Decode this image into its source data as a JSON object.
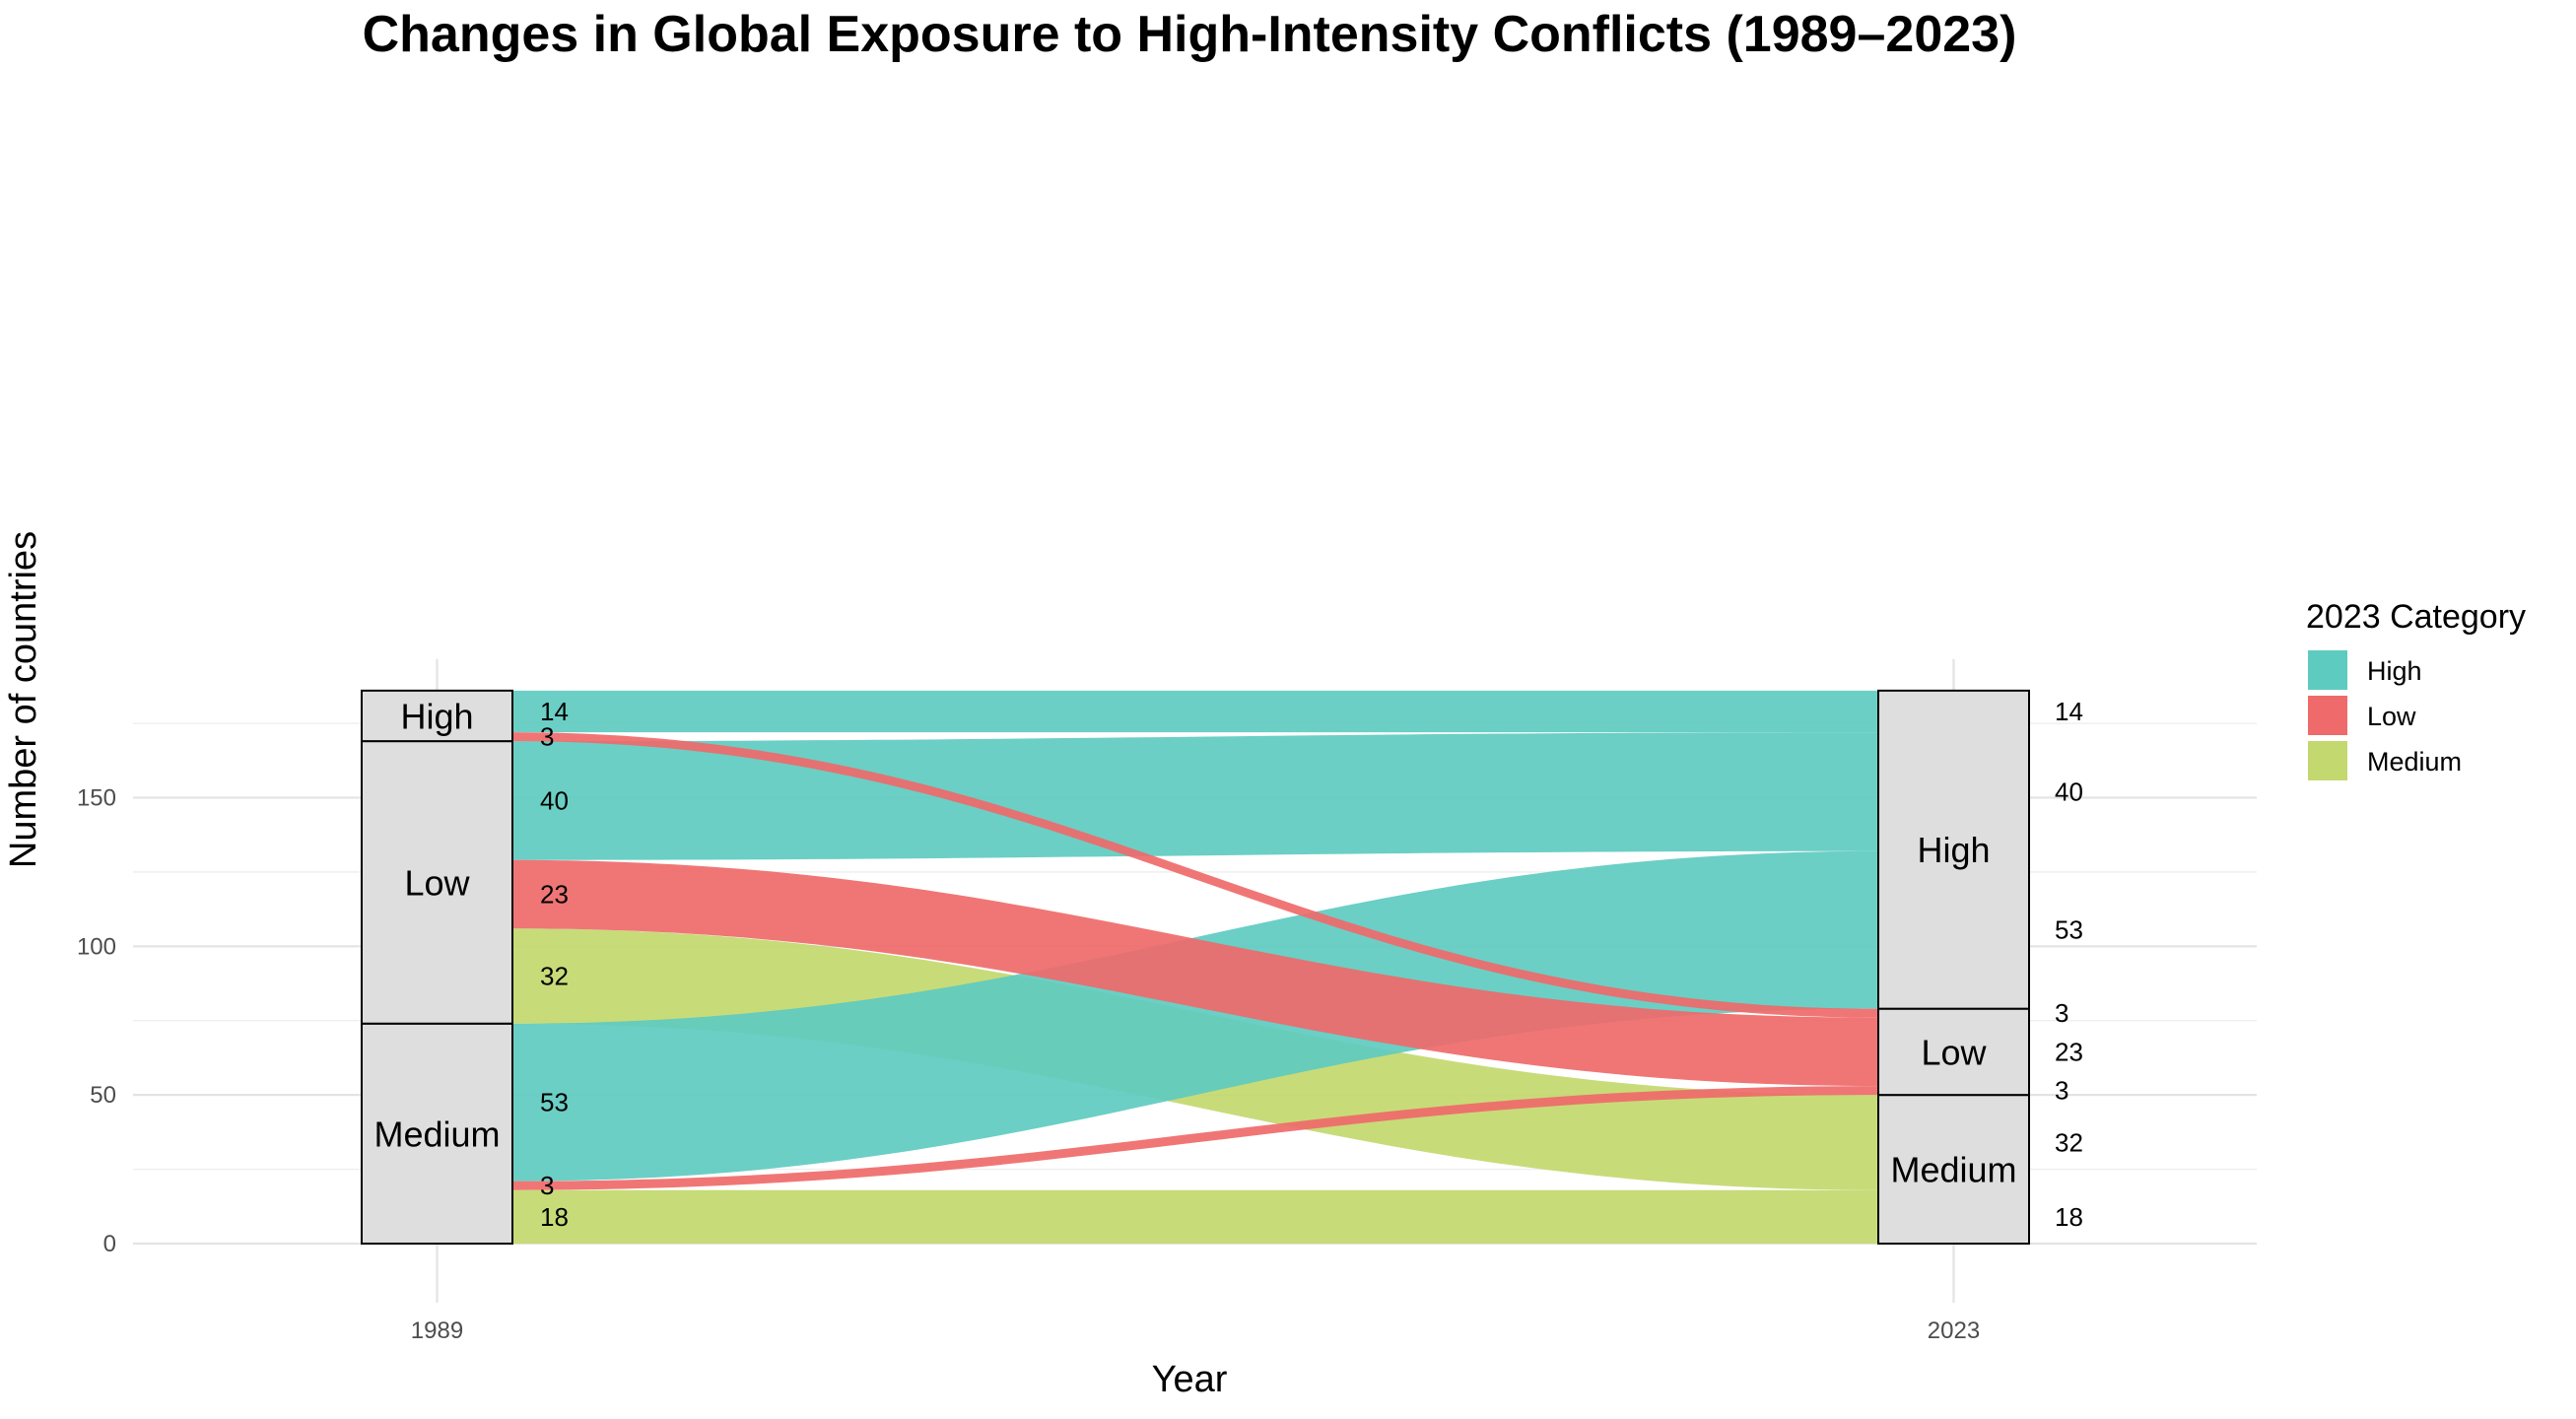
{
  "chart_data": {
    "type": "alluvial",
    "title": "Changes in Global Exposure to High-Intensity Conflicts (1989–2023)",
    "xlabel": "Year",
    "ylabel": "Number of countries",
    "x": [
      "1989",
      "2023"
    ],
    "yticks": [
      0,
      50,
      100,
      150
    ],
    "ylim": [
      -5,
      190
    ],
    "legend": {
      "title": "2023 Category",
      "position": "right",
      "entries": [
        {
          "name": "High",
          "color": "#5ecbc0"
        },
        {
          "name": "Low",
          "color": "#ef6a6a"
        },
        {
          "name": "Medium",
          "color": "#c3d86e"
        }
      ]
    },
    "categories_1989": [
      "Medium",
      "Low",
      "High"
    ],
    "categories_2023": [
      "Medium",
      "Low",
      "High"
    ],
    "flows": [
      {
        "from": "Medium",
        "to": "Medium",
        "value": 18
      },
      {
        "from": "Medium",
        "to": "Low",
        "value": 3
      },
      {
        "from": "Medium",
        "to": "High",
        "value": 53
      },
      {
        "from": "Low",
        "to": "Medium",
        "value": 32
      },
      {
        "from": "Low",
        "to": "Low",
        "value": 23
      },
      {
        "from": "Low",
        "to": "High",
        "value": 40
      },
      {
        "from": "High",
        "to": "Low",
        "value": 3
      },
      {
        "from": "High",
        "to": "High",
        "value": 14
      }
    ],
    "left_flow_labels": [
      "18",
      "3",
      "53",
      "32",
      "23",
      "40",
      "3",
      "14"
    ],
    "right_flow_labels": [
      "18",
      "32",
      "3",
      "23",
      "3",
      "53",
      "40",
      "14"
    ],
    "grid": true
  }
}
